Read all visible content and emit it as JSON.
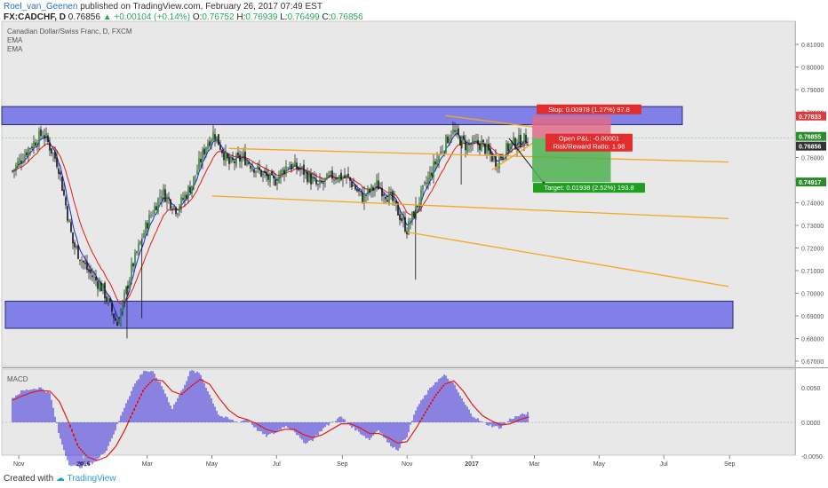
{
  "header": {
    "author": "Roel_van_Geenen",
    "published_text": "published on TradingView.com, February 26, 2017 07:49 EST",
    "symbol": "FX:CADCHF, D",
    "last": "0.76856",
    "change": "+0.00104 (+0.14%)",
    "o_label": "O:",
    "o": "0.76752",
    "h_label": "H:",
    "h": "0.76939",
    "l_label": "L:",
    "l": "0.76499",
    "c_label": "C:",
    "c": "0.76856"
  },
  "legend": {
    "title": "Canadian Dollar/Swiss Franc, D, FXCM",
    "ema1": "EMA",
    "ema2": "EMA"
  },
  "footer": {
    "created_with": "Created with",
    "brand": "TradingView"
  },
  "chart_data": [
    {
      "type": "candlestick",
      "symbol": "CADCHF",
      "timeframe": "D",
      "y_range": [
        0.665,
        0.82
      ],
      "y_ticks": [
        "0.81000",
        "0.80000",
        "0.79000",
        "0.78000",
        "0.77000",
        "0.76000",
        "0.75000",
        "0.74000",
        "0.73000",
        "0.72000",
        "0.71000",
        "0.70000",
        "0.69000",
        "0.68000",
        "0.67000"
      ],
      "x_ticks": [
        "Nov",
        "2016",
        "Mar",
        "May",
        "Jul",
        "Sep",
        "Nov",
        "2017",
        "Mar",
        "May",
        "Jul",
        "Sep"
      ],
      "price_tags": [
        {
          "label": "0.77833",
          "color": "#e03a3a"
        },
        {
          "label": "0.76855",
          "color": "#2a8c2a"
        },
        {
          "label": "0.76856",
          "color": "#333333"
        },
        {
          "label": "0.74917",
          "color": "#2a8c2a"
        }
      ],
      "close_path": [
        [
          "2015-10-26",
          0.754
        ],
        [
          "2015-11-10",
          0.764
        ],
        [
          "2015-11-24",
          0.771
        ],
        [
          "2015-12-08",
          0.757
        ],
        [
          "2015-12-22",
          0.722
        ],
        [
          "2016-01-05",
          0.71
        ],
        [
          "2016-01-19",
          0.702
        ],
        [
          "2016-02-02",
          0.686
        ],
        [
          "2016-02-16",
          0.712
        ],
        [
          "2016-03-01",
          0.731
        ],
        [
          "2016-03-15",
          0.745
        ],
        [
          "2016-03-29",
          0.737
        ],
        [
          "2016-04-12",
          0.748
        ],
        [
          "2016-04-26",
          0.766
        ],
        [
          "2016-05-03",
          0.771
        ],
        [
          "2016-05-17",
          0.757
        ],
        [
          "2016-05-31",
          0.76
        ],
        [
          "2016-06-14",
          0.754
        ],
        [
          "2016-06-28",
          0.749
        ],
        [
          "2016-07-12",
          0.757
        ],
        [
          "2016-07-26",
          0.754
        ],
        [
          "2016-08-09",
          0.747
        ],
        [
          "2016-08-23",
          0.752
        ],
        [
          "2016-09-06",
          0.751
        ],
        [
          "2016-09-20",
          0.742
        ],
        [
          "2016-10-04",
          0.748
        ],
        [
          "2016-10-18",
          0.741
        ],
        [
          "2016-11-01",
          0.728
        ],
        [
          "2016-11-15",
          0.744
        ],
        [
          "2016-11-29",
          0.759
        ],
        [
          "2016-12-13",
          0.772
        ],
        [
          "2016-12-27",
          0.765
        ],
        [
          "2017-01-10",
          0.766
        ],
        [
          "2017-01-24",
          0.758
        ],
        [
          "2017-02-07",
          0.766
        ],
        [
          "2017-02-24",
          0.7686
        ]
      ],
      "zones": [
        {
          "name": "resistance",
          "from": 0.7745,
          "to": 0.7825
        },
        {
          "name": "support",
          "from": 0.6845,
          "to": 0.6965
        }
      ],
      "lines": [
        {
          "name": "channel-top",
          "from": [
            "2016-05-17",
            0.764
          ],
          "to": [
            "2017-08-31",
            0.758
          ]
        },
        {
          "name": "channel-mid",
          "from": [
            "2016-05-01",
            0.743
          ],
          "to": [
            "2017-08-31",
            0.733
          ]
        },
        {
          "name": "channel-bottom",
          "from": [
            "2016-11-01",
            0.727
          ],
          "to": [
            "2017-08-31",
            0.703
          ]
        },
        {
          "name": "wedge-top",
          "from": [
            "2016-12-07",
            0.7785
          ],
          "to": [
            "2017-02-28",
            0.7735
          ]
        },
        {
          "name": "wedge-bottom",
          "from": [
            "2017-01-20",
            0.7545
          ],
          "to": [
            "2017-02-28",
            0.7665
          ]
        }
      ],
      "trade": {
        "stop_label": "Stop: 0.00978 (1.27%) 97.8",
        "pnl_label": "Open P&L: -0.00001",
        "rr_label": "Risk/Reward Ratio: 1.98",
        "target_label": "Target: 0.01938 (2.52%) 193.8",
        "entry": 0.76855,
        "stop": 0.77833,
        "target": 0.74917
      }
    },
    {
      "type": "bar",
      "name": "MACD",
      "title": "MACD",
      "y_ticks": [
        "0.0050",
        "0.0000",
        "-0.0050"
      ],
      "histogram": [
        0.0035,
        0.0045,
        0.0048,
        0.005,
        0.0042,
        -0.002,
        -0.006,
        -0.0065,
        -0.0062,
        -0.0055,
        -0.004,
        -0.001,
        0.0025,
        0.0055,
        0.0075,
        0.0072,
        0.005,
        0.002,
        0.0045,
        0.0075,
        0.007,
        0.004,
        0.001,
        0.0005,
        0.0,
        0.0005,
        -0.001,
        -0.002,
        -0.0015,
        -0.0005,
        -0.0012,
        -0.003,
        -0.0025,
        -0.001,
        0.0,
        0.0008,
        -0.0005,
        -0.0015,
        -0.0025,
        -0.001,
        -0.003,
        -0.004,
        -0.002,
        0.002,
        0.004,
        0.0058,
        0.0068,
        0.0055,
        0.003,
        0.001,
        0.0,
        -0.0005,
        -0.0008,
        0.0005,
        0.001,
        0.0014
      ],
      "signal": [
        0.0032,
        0.0038,
        0.0043,
        0.0046,
        0.0045,
        0.003,
        0.0,
        -0.0035,
        -0.005,
        -0.0055,
        -0.005,
        -0.0035,
        -0.001,
        0.002,
        0.0048,
        0.0062,
        0.006,
        0.0045,
        0.004,
        0.0052,
        0.0062,
        0.0055,
        0.0035,
        0.0018,
        0.0008,
        0.0004,
        -0.0002,
        -0.001,
        -0.0014,
        -0.001,
        -0.001,
        -0.0018,
        -0.0022,
        -0.0018,
        -0.001,
        -0.0002,
        -0.0002,
        -0.0008,
        -0.0016,
        -0.0016,
        -0.0022,
        -0.003,
        -0.0028,
        -0.0008,
        0.0015,
        0.0038,
        0.0055,
        0.006,
        0.0045,
        0.0025,
        0.001,
        0.0002,
        -0.0004,
        -0.0002,
        0.0004,
        0.0008
      ]
    }
  ],
  "colors": {
    "plot_bg": "#e8e8e8",
    "zone": "#8080e8",
    "zone_border": "#2a2a6e",
    "channel": "#f5a623",
    "ema_fast": "#1a2bd9",
    "ema_slow": "#e01b1b",
    "candle_up": "#2e8b2e",
    "candle_down": "#111111",
    "stop_box": "#e06a8a",
    "target_box": "#4fb04f",
    "macd_hist": "#2a1bd9",
    "macd_signal": "#e01b1b"
  }
}
